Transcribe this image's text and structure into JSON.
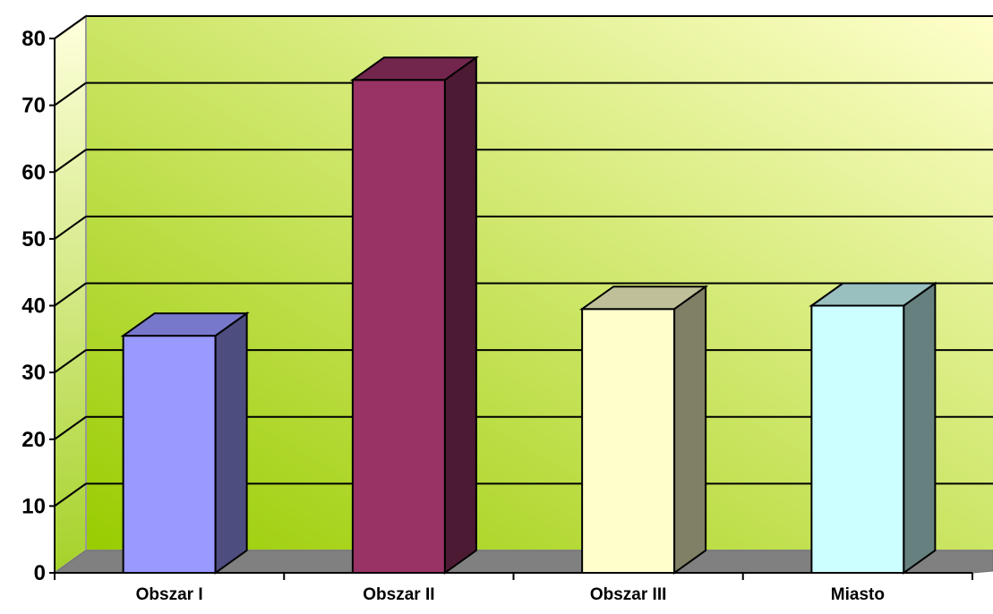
{
  "chart_data": {
    "type": "bar",
    "style": "3d",
    "categories": [
      "Obszar I",
      "Obszar II",
      "Obszar III",
      "Miasto"
    ],
    "values": [
      35.5,
      73.8,
      39.5,
      40.0
    ],
    "ylim": [
      0,
      80
    ],
    "yticks": [
      "0",
      "10",
      "20",
      "30",
      "40",
      "50",
      "60",
      "70",
      "80"
    ],
    "grid": true,
    "bar_colors": [
      {
        "front": "#9999ff",
        "side": "#4d4d80",
        "top": "#7777cc"
      },
      {
        "front": "#993366",
        "side": "#4d1a33",
        "top": "#73264d"
      },
      {
        "front": "#ffffcc",
        "side": "#808066",
        "top": "#bfbf99"
      },
      {
        "front": "#ccffff",
        "side": "#668080",
        "top": "#99bfbf"
      }
    ],
    "wall_gradient": [
      "#99cc00",
      "#ffffcc"
    ],
    "floor_color": "#808080"
  }
}
